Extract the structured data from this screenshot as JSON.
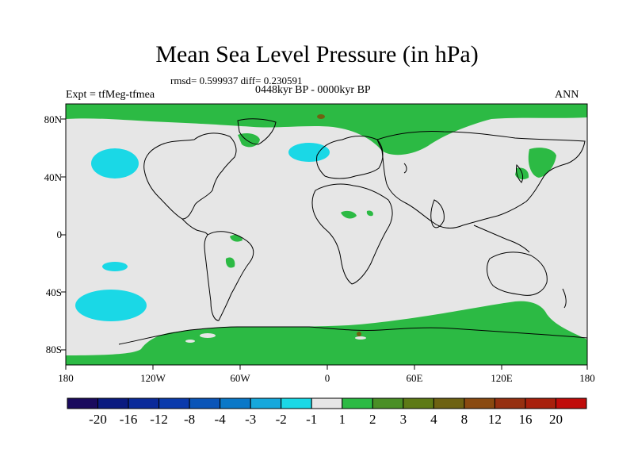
{
  "title": "Mean Sea Level Pressure (in hPa)",
  "stats": "rmsd= 0.599937 diff= 0.230591",
  "period": "0448kyr BP - 0000kyr BP",
  "experiment": "Expt = tfMeg-tfmea",
  "season": "ANN",
  "lat_labels": [
    "80N",
    "40N",
    "0",
    "40S",
    "80S"
  ],
  "lon_labels": [
    "180",
    "120W",
    "60W",
    "0",
    "60E",
    "120E",
    "180"
  ],
  "colorbar": {
    "labels": [
      "-20",
      "-16",
      "-12",
      "-8",
      "-4",
      "-3",
      "-2",
      "-1",
      "1",
      "2",
      "3",
      "4",
      "8",
      "12",
      "16",
      "20"
    ],
    "colors": [
      "#1a0a5e",
      "#0a1a80",
      "#0a2a9a",
      "#0a3aac",
      "#0a55b8",
      "#0a78c8",
      "#16a8dc",
      "#1ad8e6",
      "#e6e6e6",
      "#2cba44",
      "#4a8f26",
      "#5e7a16",
      "#6e6212",
      "#8a4a10",
      "#963010",
      "#a8200c",
      "#c00c0a"
    ]
  },
  "colors": {
    "background": "#e6e6e6",
    "positive": "#2cba44",
    "negative": "#1ad8e6",
    "brown": "#6e6212"
  }
}
